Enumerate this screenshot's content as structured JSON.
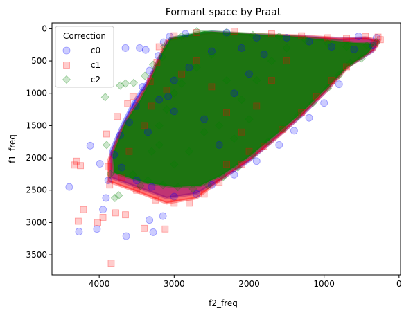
{
  "chart_data": {
    "type": "scatter",
    "title": "Formant space by Praat",
    "xlabel": "f2_freq",
    "ylabel": "f1_freq",
    "xlim": [
      4630,
      -20
    ],
    "ylim": [
      3810,
      -90
    ],
    "x_inverted": true,
    "y_inverted": true,
    "xticks": [
      {
        "value": 4000,
        "label": "4000"
      },
      {
        "value": 3000,
        "label": "3000"
      },
      {
        "value": 2000,
        "label": "2000"
      },
      {
        "value": 1000,
        "label": "1000"
      },
      {
        "value": 0,
        "label": "0"
      }
    ],
    "yticks": [
      {
        "value": 0,
        "label": "0"
      },
      {
        "value": 500,
        "label": "500"
      },
      {
        "value": 1000,
        "label": "1000"
      },
      {
        "value": 1500,
        "label": "1500"
      },
      {
        "value": 2000,
        "label": "2000"
      },
      {
        "value": 2500,
        "label": "2500"
      },
      {
        "value": 3000,
        "label": "3000"
      },
      {
        "value": 3500,
        "label": "3500"
      }
    ],
    "legend": {
      "title": "Correction",
      "placement": "upper left"
    },
    "series": [
      {
        "name": "c0",
        "marker": "circle",
        "color": "#0000ff",
        "alpha": 0.2,
        "points": [
          [
            4400,
            2450
          ],
          [
            4270,
            3140
          ],
          [
            4030,
            3100
          ],
          [
            3950,
            2800
          ],
          [
            3910,
            2620
          ],
          [
            3640,
            3210
          ],
          [
            3330,
            2960
          ],
          [
            3280,
            3150
          ],
          [
            3150,
            2900
          ],
          [
            4120,
            1810
          ],
          [
            3990,
            2090
          ],
          [
            3880,
            2350
          ],
          [
            3720,
            1650
          ],
          [
            3600,
            1450
          ],
          [
            3510,
            1200
          ],
          [
            3420,
            900
          ],
          [
            3330,
            650
          ],
          [
            3210,
            420
          ],
          [
            3140,
            210
          ],
          [
            3060,
            120
          ],
          [
            2850,
            80
          ],
          [
            2300,
            60
          ],
          [
            1900,
            140
          ],
          [
            1500,
            140
          ],
          [
            1200,
            200
          ],
          [
            900,
            280
          ],
          [
            600,
            320
          ],
          [
            350,
            260
          ],
          [
            300,
            140
          ],
          [
            540,
            120
          ],
          [
            800,
            860
          ],
          [
            1000,
            1150
          ],
          [
            1200,
            1380
          ],
          [
            1400,
            1580
          ],
          [
            1600,
            1800
          ],
          [
            1900,
            2050
          ],
          [
            2200,
            2260
          ],
          [
            2500,
            2420
          ],
          [
            2700,
            2560
          ],
          [
            3000,
            2600
          ],
          [
            3300,
            2450
          ],
          [
            3500,
            2350
          ],
          [
            3700,
            2150
          ],
          [
            3800,
            1950
          ],
          [
            3350,
            1600
          ],
          [
            3200,
            1100
          ],
          [
            3000,
            800
          ],
          [
            2800,
            600
          ],
          [
            2600,
            1400
          ],
          [
            2400,
            1800
          ],
          [
            2200,
            1000
          ],
          [
            2000,
            700
          ],
          [
            1800,
            400
          ],
          [
            2100,
            300
          ],
          [
            2500,
            350
          ],
          [
            3460,
            300
          ],
          [
            3380,
            330
          ],
          [
            3650,
            300
          ],
          [
            3080,
            1050
          ],
          [
            3000,
            1280
          ]
        ]
      },
      {
        "name": "c1",
        "marker": "square",
        "color": "#ff0000",
        "alpha": 0.2,
        "points": [
          [
            4300,
            2050
          ],
          [
            4330,
            2110
          ],
          [
            4250,
            2120
          ],
          [
            4280,
            2980
          ],
          [
            4210,
            2800
          ],
          [
            4020,
            3000
          ],
          [
            3950,
            2920
          ],
          [
            3840,
            3630
          ],
          [
            3780,
            2850
          ],
          [
            3650,
            2880
          ],
          [
            3400,
            3090
          ],
          [
            3120,
            3100
          ],
          [
            3900,
            1630
          ],
          [
            3880,
            2140
          ],
          [
            3860,
            2420
          ],
          [
            3760,
            1360
          ],
          [
            3620,
            1160
          ],
          [
            3550,
            1050
          ],
          [
            3320,
            820
          ],
          [
            3230,
            520
          ],
          [
            3200,
            280
          ],
          [
            3000,
            110
          ],
          [
            2700,
            60
          ],
          [
            2200,
            40
          ],
          [
            1700,
            80
          ],
          [
            1300,
            110
          ],
          [
            950,
            140
          ],
          [
            700,
            150
          ],
          [
            450,
            120
          ],
          [
            280,
            130
          ],
          [
            250,
            170
          ],
          [
            320,
            230
          ],
          [
            700,
            590
          ],
          [
            900,
            800
          ],
          [
            1100,
            1050
          ],
          [
            1300,
            1300
          ],
          [
            1550,
            1560
          ],
          [
            1800,
            1820
          ],
          [
            2100,
            2100
          ],
          [
            2400,
            2380
          ],
          [
            2600,
            2560
          ],
          [
            2800,
            2700
          ],
          [
            3000,
            2700
          ],
          [
            3250,
            2650
          ],
          [
            3500,
            2500
          ],
          [
            3700,
            2300
          ],
          [
            3600,
            1900
          ],
          [
            3400,
            1500
          ],
          [
            3300,
            1200
          ],
          [
            3100,
            950
          ],
          [
            2900,
            700
          ],
          [
            2700,
            500
          ],
          [
            2500,
            900
          ],
          [
            2300,
            1300
          ],
          [
            2100,
            1600
          ],
          [
            1900,
            1200
          ],
          [
            1700,
            800
          ],
          [
            1500,
            500
          ],
          [
            2000,
            1900
          ],
          [
            2300,
            2100
          ]
        ]
      },
      {
        "name": "c2",
        "marker": "diamond",
        "color": "#008000",
        "alpha": 0.2,
        "points": [
          [
            3920,
            1060
          ],
          [
            3720,
            880
          ],
          [
            3650,
            850
          ],
          [
            3540,
            840
          ],
          [
            3390,
            730
          ],
          [
            3280,
            560
          ],
          [
            3160,
            440
          ],
          [
            3130,
            280
          ],
          [
            2900,
            120
          ],
          [
            2700,
            40
          ],
          [
            2300,
            60
          ],
          [
            1950,
            100
          ],
          [
            1600,
            120
          ],
          [
            1250,
            170
          ],
          [
            950,
            230
          ],
          [
            700,
            280
          ],
          [
            430,
            260
          ],
          [
            300,
            210
          ],
          [
            500,
            460
          ],
          [
            650,
            530
          ],
          [
            800,
            720
          ],
          [
            950,
            920
          ],
          [
            1150,
            1150
          ],
          [
            1350,
            1350
          ],
          [
            1550,
            1550
          ],
          [
            1750,
            1750
          ],
          [
            1950,
            1950
          ],
          [
            2150,
            2150
          ],
          [
            2350,
            2300
          ],
          [
            2550,
            2420
          ],
          [
            2750,
            2480
          ],
          [
            2950,
            2450
          ],
          [
            3150,
            2420
          ],
          [
            3350,
            2350
          ],
          [
            3550,
            2260
          ],
          [
            3750,
            2200
          ],
          [
            3900,
            1800
          ],
          [
            3850,
            2250
          ],
          [
            3790,
            2620
          ],
          [
            3740,
            2580
          ],
          [
            3450,
            2430
          ],
          [
            3300,
            1900
          ],
          [
            3200,
            1500
          ],
          [
            3100,
            1250
          ],
          [
            3000,
            1000
          ],
          [
            2900,
            850
          ],
          [
            2700,
            600
          ],
          [
            2500,
            400
          ],
          [
            2300,
            800
          ],
          [
            2100,
            1100
          ],
          [
            1900,
            800
          ],
          [
            1700,
            500
          ],
          [
            1500,
            300
          ],
          [
            2600,
            1600
          ],
          [
            2800,
            1900
          ],
          [
            3000,
            2100
          ],
          [
            3200,
            1800
          ],
          [
            2400,
            1500
          ],
          [
            2200,
            1700
          ],
          [
            2000,
            1400
          ]
        ]
      }
    ]
  }
}
